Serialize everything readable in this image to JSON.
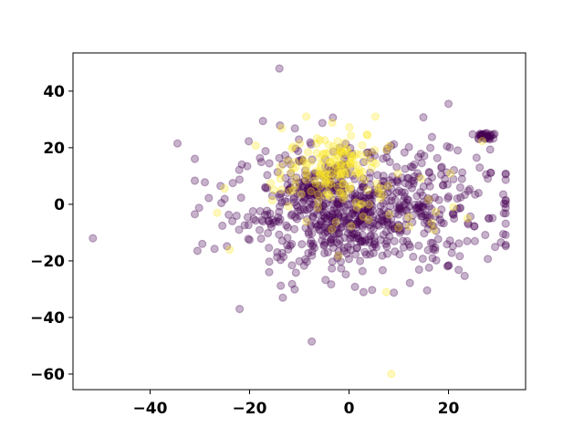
{
  "chart_data": {
    "type": "scatter",
    "title": "",
    "xlabel": "",
    "ylabel": "",
    "xlim": [
      -55.5,
      35.5
    ],
    "ylim": [
      -65.5,
      53.5
    ],
    "xticks": [
      -40,
      -20,
      0,
      20
    ],
    "yticks": [
      -60,
      -40,
      -20,
      0,
      20,
      40
    ],
    "xtick_labels": [
      "−40",
      "−20",
      "0",
      "20"
    ],
    "ytick_labels": [
      "−60",
      "−40",
      "−20",
      "0",
      "20",
      "40"
    ],
    "grid": false,
    "legend": "none",
    "point_alpha": 0.3,
    "series": [
      {
        "color": "#440154",
        "clusters": [
          {
            "cx": 2,
            "cy": -2,
            "sx": 13,
            "sy": 11,
            "n": 700
          },
          {
            "cx": -7,
            "cy": 5,
            "sx": 2.2,
            "sy": 2.2,
            "n": 55
          },
          {
            "cx": -2,
            "cy": -7,
            "sx": 4,
            "sy": 4,
            "n": 60
          },
          {
            "cx": 27.5,
            "cy": 24,
            "sx": 1.4,
            "sy": 0.9,
            "n": 30
          }
        ],
        "points": [
          [
            -14,
            48
          ],
          [
            20,
            35.5
          ],
          [
            -34.5,
            21.5
          ],
          [
            -51.5,
            -12
          ],
          [
            -22,
            -37
          ],
          [
            -7.5,
            -48.5
          ],
          [
            31,
            3.5
          ],
          [
            31,
            -10.5
          ],
          [
            -29.5,
            -14
          ]
        ]
      },
      {
        "color": "#fde725",
        "clusters": [
          {
            "cx": -3,
            "cy": 14,
            "sx": 5,
            "sy": 6,
            "n": 130
          },
          {
            "cx": 2,
            "cy": 5,
            "sx": 10,
            "sy": 10,
            "n": 60
          }
        ],
        "points": [
          [
            8.5,
            -60
          ],
          [
            7.5,
            -31
          ],
          [
            -26.5,
            -3
          ],
          [
            -24,
            -16
          ],
          [
            21,
            -1
          ],
          [
            12,
            -4.5
          ]
        ]
      }
    ]
  }
}
